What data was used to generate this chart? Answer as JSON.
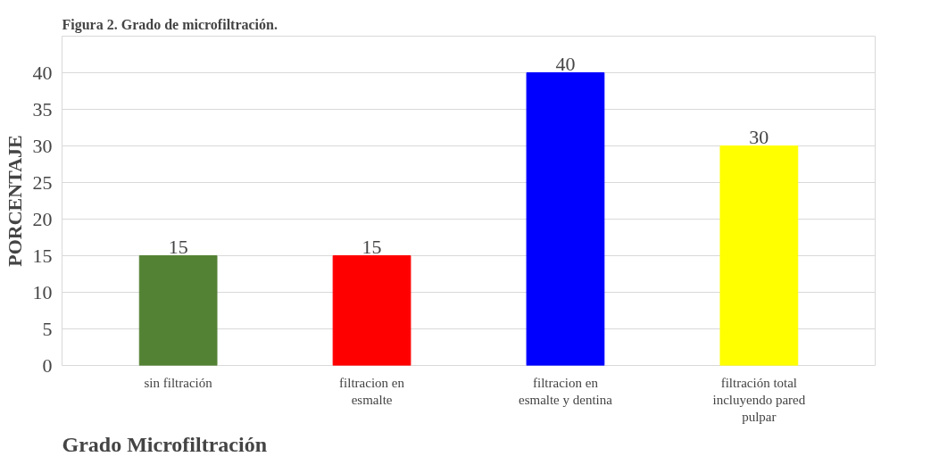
{
  "chart_data": {
    "type": "bar",
    "title": "Grado Microfiltración",
    "ylabel": "PORCENTAJE",
    "annotations": [
      "Figura 2. Grado de microfiltración."
    ],
    "categories": [
      "sin filtración",
      "filtracion en esmalte",
      "filtracion en esmalte y dentina",
      "filtración total incluyendo pared pulpar"
    ],
    "values": [
      15,
      15,
      40,
      30
    ],
    "colors": [
      "#548235",
      "#ff0000",
      "#0000ff",
      "#ffff00"
    ],
    "ylim": [
      0,
      45
    ],
    "yticks": [
      0,
      5,
      10,
      15,
      20,
      25,
      30,
      35,
      40,
      {
        "value": 45,
        "label": null
      }
    ],
    "grid": "y",
    "data_labels": true
  }
}
